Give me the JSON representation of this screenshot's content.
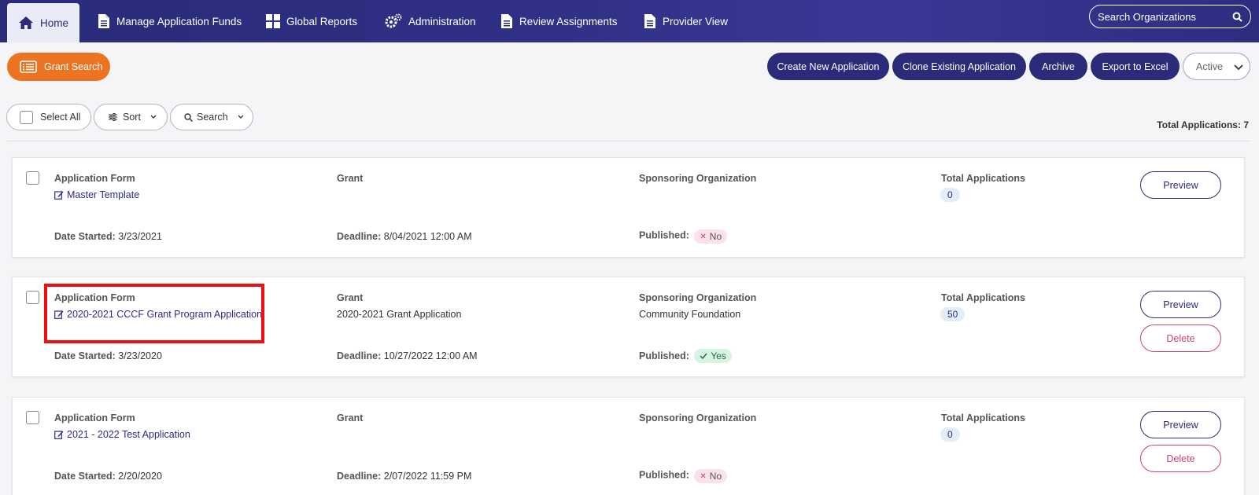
{
  "nav": {
    "tabs": [
      {
        "label": "Home",
        "icon": "home-icon"
      },
      {
        "label": "Manage Application Funds",
        "icon": "document-icon"
      },
      {
        "label": "Global Reports",
        "icon": "grid-icon"
      },
      {
        "label": "Administration",
        "icon": "gears-icon"
      },
      {
        "label": "Review Assignments",
        "icon": "document-icon"
      },
      {
        "label": "Provider View",
        "icon": "document-icon"
      }
    ],
    "search_placeholder": "Search Organizations"
  },
  "toolbar": {
    "grant_search": "Grant Search",
    "create_new": "Create New Application",
    "clone_existing": "Clone Existing Application",
    "archive": "Archive",
    "export_excel": "Export to Excel",
    "status_select": "Active"
  },
  "filters": {
    "select_all": "Select All",
    "sort": "Sort",
    "search": "Search",
    "total_label": "Total Applications:",
    "total_value": "7"
  },
  "labels": {
    "application_form": "Application Form",
    "grant": "Grant",
    "sponsoring_org": "Sponsoring Organization",
    "total_applications": "Total Applications",
    "date_started": "Date Started:",
    "deadline": "Deadline:",
    "published": "Published:",
    "preview": "Preview",
    "delete": "Delete"
  },
  "applications": [
    {
      "form": "Master Template",
      "grant": "",
      "sponsor": "",
      "total": "0",
      "date_started": "3/23/2021",
      "deadline": "8/04/2021 12:00 AM",
      "published": "No"
    },
    {
      "form": "2020-2021 CCCF Grant Program Application",
      "grant": "2020-2021 Grant Application",
      "sponsor": "Community Foundation",
      "total": "50",
      "date_started": "3/23/2020",
      "deadline": "10/27/2022 12:00 AM",
      "published": "Yes"
    },
    {
      "form": "2021 - 2022 Test Application",
      "grant": "",
      "sponsor": "",
      "total": "0",
      "date_started": "2/20/2020",
      "deadline": "2/07/2022 11:59 PM",
      "published": "No"
    }
  ],
  "colors": {
    "nav_bg": "#2b2b7a",
    "accent_orange": "#ec7322",
    "navy_button": "#2b2b7a",
    "delete_red": "#c9466b",
    "highlight_red": "#ee0f0f"
  }
}
